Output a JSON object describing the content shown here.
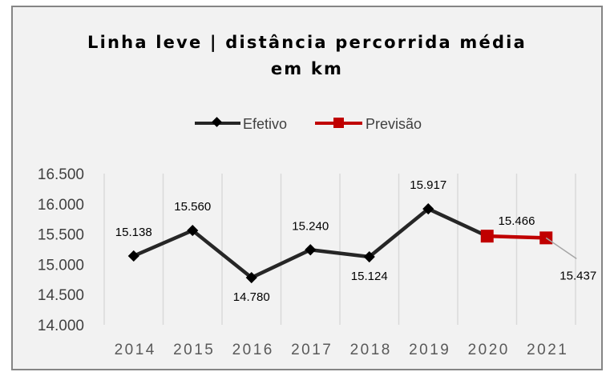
{
  "chart_data": {
    "type": "line",
    "title_lines": [
      "Linha leve | distância percorrida média",
      "em km"
    ],
    "categories": [
      "2014",
      "2015",
      "2016",
      "2017",
      "2018",
      "2019",
      "2020",
      "2021"
    ],
    "series": [
      {
        "name": "Efetivo",
        "color": "#262626",
        "marker": "diamond",
        "x": [
          "2014",
          "2015",
          "2016",
          "2017",
          "2018",
          "2019"
        ],
        "values": [
          15138,
          15560,
          14780,
          15240,
          15124,
          15917
        ],
        "labels": [
          "15.138",
          "15.560",
          "14.780",
          "15.240",
          "15.124",
          "15.917"
        ]
      },
      {
        "name": "Previsão",
        "color": "#c00000",
        "marker": "square",
        "x": [
          "2020",
          "2021"
        ],
        "values": [
          15466,
          15437
        ],
        "labels": [
          "15.466",
          "15.437"
        ]
      }
    ],
    "ylim": [
      14000,
      16500
    ],
    "yticks": [
      14000,
      14500,
      15000,
      15500,
      16000,
      16500
    ],
    "ytick_labels": [
      "14.000",
      "14.500",
      "15.000",
      "15.500",
      "16.000",
      "16.500"
    ],
    "grid": "vertical",
    "legend": "top-center",
    "background": "#f2f2f2"
  }
}
